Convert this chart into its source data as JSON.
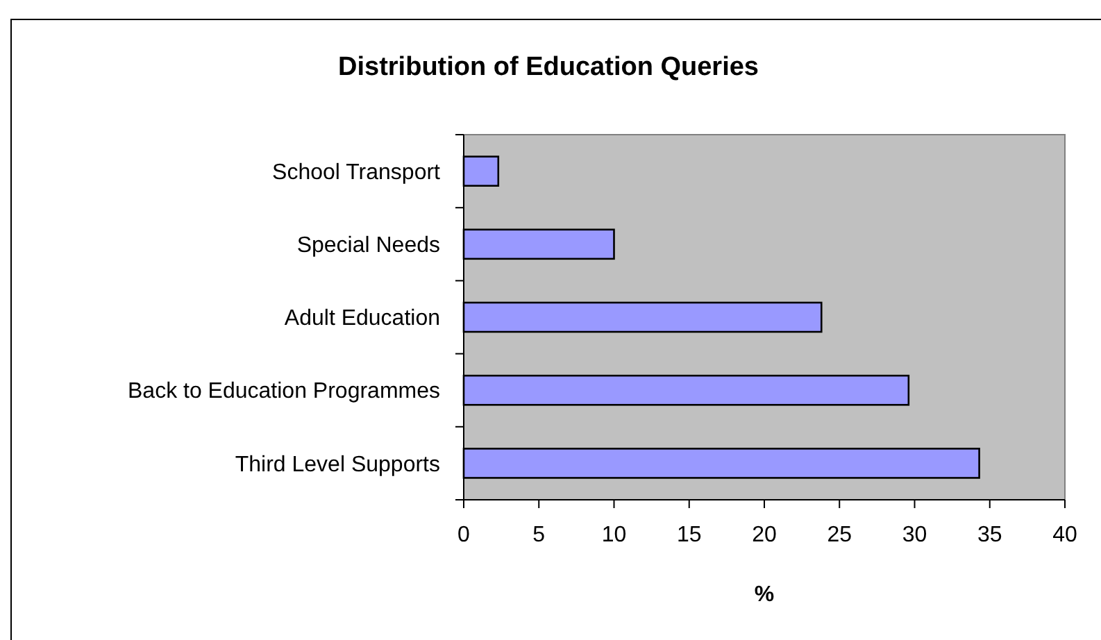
{
  "chart_data": {
    "type": "bar",
    "orientation": "horizontal",
    "title": "Distribution of Education Queries",
    "xlabel": "%",
    "categories": [
      "School Transport",
      "Special Needs",
      "Adult Education",
      "Back to Education Programmes",
      "Third Level Supports"
    ],
    "values": [
      2.3,
      10,
      23.8,
      29.6,
      34.3
    ],
    "color": "#9999ff",
    "xlim": [
      0,
      40
    ],
    "xticks": [
      0,
      5,
      10,
      15,
      20,
      25,
      30,
      35,
      40
    ],
    "grid": false
  }
}
